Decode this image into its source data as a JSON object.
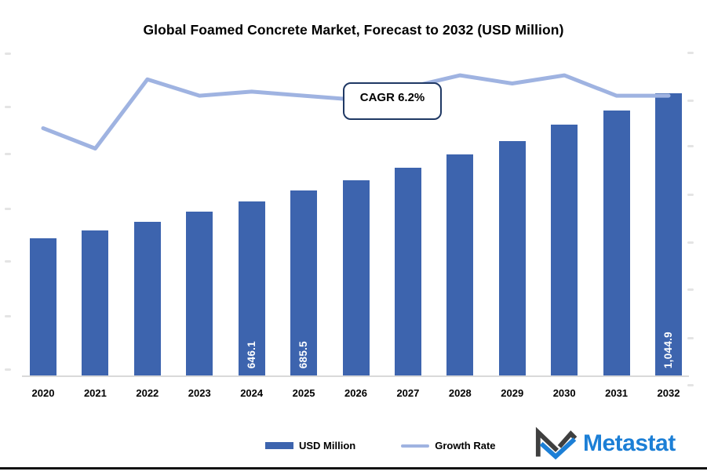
{
  "title": "Global Foamed Concrete Market, Forecast to 2032 (USD Million)",
  "callout": {
    "text": "CAGR 6.2%"
  },
  "legend": {
    "items": [
      {
        "label": "USD Million",
        "swatch": "bar"
      },
      {
        "label": "Growth Rate",
        "swatch": "line"
      }
    ]
  },
  "branding": {
    "logo_text": "Metastat",
    "logo_icon": "metastat-m-mark"
  },
  "colors": {
    "bar": "#3D64AE",
    "line": "#9FB3E1",
    "callout_border": "#1F3864",
    "logo_blue": "#1C7FD6",
    "logo_dark": "#3F3F3F",
    "axis_line": "#d9d9d9",
    "text": "#000000"
  },
  "chart_data": {
    "type": "bar",
    "subtype": "bar-line combo",
    "title": "Global Foamed Concrete Market, Forecast to 2032 (USD Million)",
    "categories": [
      "2020",
      "2021",
      "2022",
      "2023",
      "2024",
      "2025",
      "2026",
      "2027",
      "2028",
      "2029",
      "2030",
      "2031",
      "2032"
    ],
    "series": [
      {
        "name": "USD Million",
        "type": "bar",
        "values": [
          509.8,
          538.8,
          570.4,
          608.0,
          646.1,
          685.5,
          723.9,
          770.2,
          819.4,
          868.6,
          929.4,
          981.5,
          1044.9
        ],
        "displayed_value_labels": {
          "2024": "646.1",
          "2025": "685.5",
          "2032": "1,044.9"
        }
      },
      {
        "name": "Growth Rate",
        "type": "line",
        "values": [
          6.1,
          5.6,
          7.3,
          6.9,
          7.0,
          6.9,
          6.8,
          7.1,
          7.4,
          7.2,
          7.4,
          6.9,
          6.9
        ]
      }
    ],
    "annotations": [
      "CAGR 6.2%"
    ],
    "xlabel": "",
    "ylabel": "",
    "left_axis": {
      "ylim_estimated": [
        0,
        1200
      ],
      "tick_labels": "present but illegibly faint"
    },
    "right_axis": {
      "ylim_estimated": [
        0,
        8
      ],
      "tick_labels": "present but illegibly faint"
    },
    "grid": false,
    "legend_position": "bottom-center"
  }
}
